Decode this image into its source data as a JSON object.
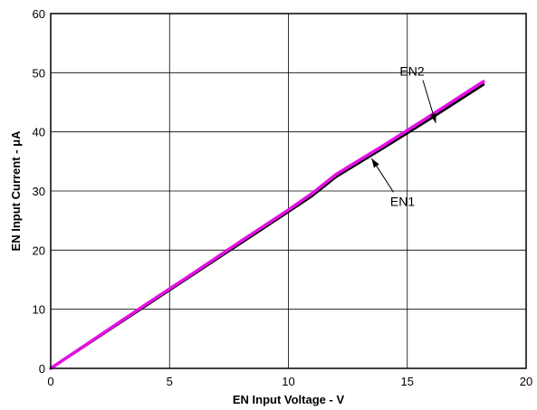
{
  "chart_data": {
    "type": "line",
    "title": "",
    "xlabel": "EN Input Voltage - V",
    "ylabel": "EN Input Current - μA",
    "xlim": [
      0,
      20
    ],
    "ylim": [
      0,
      60
    ],
    "xticks": [
      0,
      5,
      10,
      15,
      20
    ],
    "yticks": [
      0,
      10,
      20,
      30,
      40,
      50,
      60
    ],
    "x_tick_labels": [
      "0",
      "5",
      "10",
      "15",
      "20"
    ],
    "y_tick_labels": [
      "0",
      "10",
      "20",
      "30",
      "40",
      "50",
      "60"
    ],
    "grid": true,
    "series": [
      {
        "name": "EN1",
        "color": "#000000",
        "x": [
          0,
          2,
          4,
          6,
          8,
          10,
          11,
          12,
          14,
          16,
          18.2
        ],
        "y": [
          0,
          5.3,
          10.6,
          15.9,
          21.2,
          26.5,
          29.2,
          32.4,
          37.3,
          42.3,
          48
        ]
      },
      {
        "name": "EN2",
        "color": "#e60fe6",
        "x": [
          0,
          2,
          4,
          6,
          8,
          10,
          11,
          12,
          14,
          16,
          18.2
        ],
        "y": [
          0,
          5.4,
          10.8,
          16.1,
          21.5,
          26.8,
          29.6,
          32.8,
          37.7,
          42.8,
          48.5
        ]
      }
    ],
    "annotations": [
      {
        "text": "EN2",
        "series": "EN2",
        "text_at": [
          15.2,
          49.5
        ],
        "arrow_to": [
          16.2,
          41.5
        ]
      },
      {
        "text": "EN1",
        "series": "EN1",
        "text_at": [
          14.8,
          27.5
        ],
        "arrow_to": [
          13.5,
          35.5
        ]
      }
    ]
  }
}
